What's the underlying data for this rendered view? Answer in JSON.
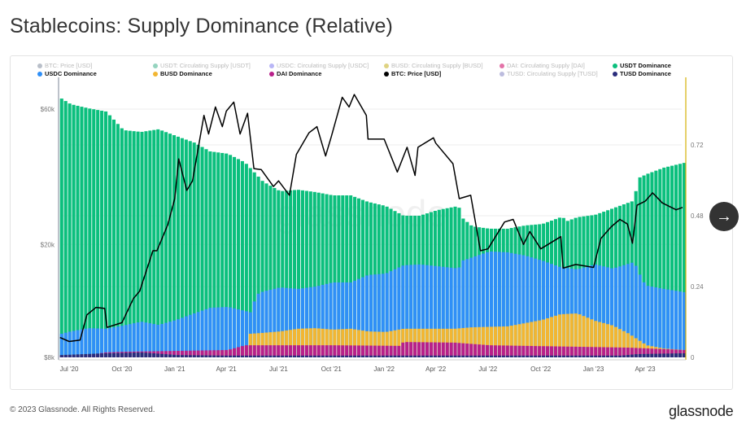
{
  "page": {
    "title": "Stablecoins: Supply Dominance (Relative)",
    "footer": "© 2023 Glassnode. All Rights Reserved.",
    "logo": "glassnode",
    "watermark": "glassnode",
    "next_icon": "arrow-right-icon"
  },
  "legend": [
    {
      "label": "BTC: Price [USD]",
      "color": "#8a95a5",
      "active": false
    },
    {
      "label": "USDT: Circulating Supply [USDT]",
      "color": "#4fb894",
      "active": false
    },
    {
      "label": "USDC: Circulating Supply [USDC]",
      "color": "#8b86f0",
      "active": false
    },
    {
      "label": "BUSD: Circulating Supply [BUSD]",
      "color": "#c9b52e",
      "active": false
    },
    {
      "label": "DAI: Circulating Supply [DAI]",
      "color": "#d0166e",
      "active": false
    },
    {
      "label": "USDT Dominance",
      "color": "#0bbf7d",
      "active": true
    },
    {
      "label": "USDC Dominance",
      "color": "#2f8ff7",
      "active": true
    },
    {
      "label": "BUSD Dominance",
      "color": "#f2b632",
      "active": true
    },
    {
      "label": "DAI Dominance",
      "color": "#b8208a",
      "active": true
    },
    {
      "label": "BTC: Price [USD]",
      "color": "#000000",
      "active": true
    },
    {
      "label": "TUSD: Circulating Supply [TUSD]",
      "color": "#8f8fc8",
      "active": false
    },
    {
      "label": "TUSD Dominance",
      "color": "#2a2d7c",
      "active": true
    }
  ],
  "chart_data": {
    "type": "bar",
    "title": "Stablecoins: Supply Dominance (Relative)",
    "x_ticks": [
      "Jul '20",
      "Oct '20",
      "Jan '21",
      "Apr '21",
      "Jul '21",
      "Oct '21",
      "Jan '22",
      "Apr '22",
      "Jul '22",
      "Oct '22",
      "Jan '23",
      "Apr '23"
    ],
    "x_tick_dates": [
      "2020-07-01",
      "2020-10-01",
      "2021-01-01",
      "2021-04-01",
      "2021-07-01",
      "2021-10-01",
      "2022-01-01",
      "2022-04-01",
      "2022-07-01",
      "2022-10-01",
      "2023-01-01",
      "2023-04-01"
    ],
    "xlim": [
      "2020-06-15",
      "2023-06-05"
    ],
    "y_left": {
      "scale": "log",
      "ticks": [
        "$8k",
        "$20k",
        "$60k"
      ],
      "tick_values": [
        8000,
        20000,
        60000
      ]
    },
    "y_right": {
      "scale": "linear",
      "ticks": [
        "0",
        "0.24",
        "0.48",
        "0.72"
      ],
      "tick_values": [
        0,
        0.24,
        0.48,
        0.72
      ],
      "range": [
        0,
        0.95
      ],
      "axis_color": "#d4b106"
    },
    "grid": true,
    "bar_interval": "weekly",
    "series": [
      {
        "name": "USDT Dominance",
        "color": "#0bbf7d",
        "axis": "right",
        "points": [
          [
            "2020-06-15",
            0.877
          ],
          [
            "2020-07-01",
            0.858
          ],
          [
            "2020-08-01",
            0.844
          ],
          [
            "2020-09-01",
            0.833
          ],
          [
            "2020-10-01",
            0.77
          ],
          [
            "2020-11-01",
            0.764
          ],
          [
            "2020-12-01",
            0.773
          ],
          [
            "2021-01-01",
            0.75
          ],
          [
            "2021-02-01",
            0.728
          ],
          [
            "2021-03-01",
            0.698
          ],
          [
            "2021-04-01",
            0.69
          ],
          [
            "2021-05-01",
            0.66
          ],
          [
            "2021-06-01",
            0.596
          ],
          [
            "2021-07-01",
            0.563
          ],
          [
            "2021-08-01",
            0.568
          ],
          [
            "2021-09-01",
            0.56
          ],
          [
            "2021-10-01",
            0.549
          ],
          [
            "2021-11-01",
            0.549
          ],
          [
            "2021-12-01",
            0.527
          ],
          [
            "2022-01-01",
            0.513
          ],
          [
            "2022-02-01",
            0.48
          ],
          [
            "2022-03-01",
            0.48
          ],
          [
            "2022-04-01",
            0.499
          ],
          [
            "2022-05-08",
            0.513
          ],
          [
            "2022-05-15",
            0.472
          ],
          [
            "2022-06-01",
            0.444
          ],
          [
            "2022-07-01",
            0.436
          ],
          [
            "2022-08-01",
            0.436
          ],
          [
            "2022-09-01",
            0.447
          ],
          [
            "2022-10-01",
            0.452
          ],
          [
            "2022-11-05",
            0.477
          ],
          [
            "2022-11-12",
            0.461
          ],
          [
            "2022-12-01",
            0.475
          ],
          [
            "2023-01-01",
            0.483
          ],
          [
            "2023-02-01",
            0.505
          ],
          [
            "2023-03-08",
            0.53
          ],
          [
            "2023-03-20",
            0.61
          ],
          [
            "2023-04-01",
            0.621
          ],
          [
            "2023-05-01",
            0.643
          ],
          [
            "2023-06-05",
            0.659
          ]
        ]
      },
      {
        "name": "USDC Dominance",
        "color": "#2f8ff7",
        "axis": "right",
        "points": [
          [
            "2020-06-15",
            0.08
          ],
          [
            "2020-07-01",
            0.088
          ],
          [
            "2020-08-01",
            0.099
          ],
          [
            "2020-09-01",
            0.097
          ],
          [
            "2020-10-01",
            0.108
          ],
          [
            "2020-11-01",
            0.121
          ],
          [
            "2020-12-01",
            0.11
          ],
          [
            "2021-01-01",
            0.127
          ],
          [
            "2021-02-01",
            0.149
          ],
          [
            "2021-03-01",
            0.168
          ],
          [
            "2021-04-01",
            0.171
          ],
          [
            "2021-05-12",
            0.152
          ],
          [
            "2021-05-20",
            0.212
          ],
          [
            "2021-06-01",
            0.223
          ],
          [
            "2021-07-01",
            0.237
          ],
          [
            "2021-08-01",
            0.232
          ],
          [
            "2021-09-01",
            0.24
          ],
          [
            "2021-10-01",
            0.254
          ],
          [
            "2021-11-01",
            0.254
          ],
          [
            "2021-12-01",
            0.279
          ],
          [
            "2022-01-01",
            0.284
          ],
          [
            "2022-02-01",
            0.312
          ],
          [
            "2022-03-01",
            0.315
          ],
          [
            "2022-04-01",
            0.309
          ],
          [
            "2022-05-08",
            0.301
          ],
          [
            "2022-05-15",
            0.328
          ],
          [
            "2022-06-01",
            0.339
          ],
          [
            "2022-07-01",
            0.359
          ],
          [
            "2022-08-01",
            0.356
          ],
          [
            "2022-09-01",
            0.345
          ],
          [
            "2022-10-01",
            0.328
          ],
          [
            "2022-11-01",
            0.306
          ],
          [
            "2022-12-01",
            0.298
          ],
          [
            "2023-01-01",
            0.315
          ],
          [
            "2023-02-01",
            0.301
          ],
          [
            "2023-03-10",
            0.323
          ],
          [
            "2023-03-25",
            0.259
          ],
          [
            "2023-04-01",
            0.243
          ],
          [
            "2023-05-01",
            0.232
          ],
          [
            "2023-06-05",
            0.221
          ]
        ]
      },
      {
        "name": "BUSD Dominance",
        "color": "#f2b632",
        "axis": "right",
        "points": [
          [
            "2020-06-15",
            0.0
          ],
          [
            "2020-09-01",
            0.003
          ],
          [
            "2021-01-01",
            0.006
          ],
          [
            "2021-03-01",
            0.017
          ],
          [
            "2021-04-01",
            0.025
          ],
          [
            "2021-05-03",
            0.039
          ],
          [
            "2021-05-10",
            0.08
          ],
          [
            "2021-06-01",
            0.083
          ],
          [
            "2021-07-01",
            0.088
          ],
          [
            "2021-08-01",
            0.097
          ],
          [
            "2021-09-01",
            0.099
          ],
          [
            "2021-10-01",
            0.094
          ],
          [
            "2021-11-01",
            0.097
          ],
          [
            "2021-12-01",
            0.088
          ],
          [
            "2022-01-01",
            0.086
          ],
          [
            "2022-02-01",
            0.097
          ],
          [
            "2022-05-01",
            0.097
          ],
          [
            "2022-06-01",
            0.102
          ],
          [
            "2022-08-01",
            0.105
          ],
          [
            "2022-09-01",
            0.116
          ],
          [
            "2022-10-01",
            0.127
          ],
          [
            "2022-11-01",
            0.146
          ],
          [
            "2022-12-01",
            0.149
          ],
          [
            "2023-01-01",
            0.124
          ],
          [
            "2023-02-01",
            0.108
          ],
          [
            "2023-03-01",
            0.08
          ],
          [
            "2023-04-01",
            0.041
          ],
          [
            "2023-05-01",
            0.03
          ],
          [
            "2023-06-05",
            0.025
          ]
        ]
      },
      {
        "name": "DAI Dominance",
        "color": "#b8208a",
        "axis": "right",
        "points": [
          [
            "2020-06-15",
            0.006
          ],
          [
            "2020-08-01",
            0.008
          ],
          [
            "2020-09-01",
            0.017
          ],
          [
            "2020-10-01",
            0.019
          ],
          [
            "2021-01-01",
            0.022
          ],
          [
            "2021-04-01",
            0.025
          ],
          [
            "2021-05-01",
            0.041
          ],
          [
            "2021-10-01",
            0.041
          ],
          [
            "2022-01-25",
            0.039
          ],
          [
            "2022-02-01",
            0.052
          ],
          [
            "2022-05-01",
            0.05
          ],
          [
            "2022-07-01",
            0.041
          ],
          [
            "2022-12-01",
            0.036
          ],
          [
            "2023-03-01",
            0.033
          ],
          [
            "2023-06-05",
            0.025
          ]
        ]
      },
      {
        "name": "TUSD Dominance",
        "color": "#2a2d7c",
        "axis": "right",
        "points": [
          [
            "2020-06-15",
            0.008
          ],
          [
            "2020-09-01",
            0.014
          ],
          [
            "2020-11-01",
            0.017
          ],
          [
            "2021-01-01",
            0.008
          ],
          [
            "2021-04-01",
            0.006
          ],
          [
            "2022-01-01",
            0.006
          ],
          [
            "2023-02-15",
            0.006
          ],
          [
            "2023-03-15",
            0.011
          ],
          [
            "2023-06-05",
            0.014
          ]
        ]
      },
      {
        "name": "BTC: Price [USD]",
        "color": "#000000",
        "axis": "left",
        "type": "line",
        "points": [
          [
            "2020-06-15",
            9400
          ],
          [
            "2020-07-01",
            9100
          ],
          [
            "2020-07-20",
            9200
          ],
          [
            "2020-08-01",
            11300
          ],
          [
            "2020-08-17",
            12000
          ],
          [
            "2020-09-01",
            11900
          ],
          [
            "2020-09-05",
            10200
          ],
          [
            "2020-10-01",
            10600
          ],
          [
            "2020-10-21",
            12900
          ],
          [
            "2020-11-01",
            13700
          ],
          [
            "2020-11-24",
            19000
          ],
          [
            "2020-12-01",
            19000
          ],
          [
            "2020-12-20",
            23500
          ],
          [
            "2021-01-01",
            29000
          ],
          [
            "2021-01-08",
            40000
          ],
          [
            "2021-01-22",
            31000
          ],
          [
            "2021-02-01",
            33500
          ],
          [
            "2021-02-21",
            57000
          ],
          [
            "2021-03-01",
            49000
          ],
          [
            "2021-03-13",
            61000
          ],
          [
            "2021-03-25",
            52000
          ],
          [
            "2021-04-01",
            59000
          ],
          [
            "2021-04-14",
            63500
          ],
          [
            "2021-04-25",
            49000
          ],
          [
            "2021-05-08",
            58000
          ],
          [
            "2021-05-19",
            37000
          ],
          [
            "2021-06-01",
            36700
          ],
          [
            "2021-06-22",
            32000
          ],
          [
            "2021-07-01",
            33500
          ],
          [
            "2021-07-20",
            29800
          ],
          [
            "2021-08-01",
            41500
          ],
          [
            "2021-08-23",
            49500
          ],
          [
            "2021-09-06",
            52000
          ],
          [
            "2021-09-21",
            41000
          ],
          [
            "2021-10-01",
            48000
          ],
          [
            "2021-10-20",
            66000
          ],
          [
            "2021-11-01",
            61000
          ],
          [
            "2021-11-10",
            67500
          ],
          [
            "2021-12-01",
            57000
          ],
          [
            "2021-12-04",
            47000
          ],
          [
            "2022-01-01",
            47000
          ],
          [
            "2022-01-24",
            36000
          ],
          [
            "2022-02-10",
            44000
          ],
          [
            "2022-02-24",
            35000
          ],
          [
            "2022-03-01",
            44000
          ],
          [
            "2022-03-28",
            47500
          ],
          [
            "2022-04-01",
            45500
          ],
          [
            "2022-05-01",
            38500
          ],
          [
            "2022-05-12",
            29000
          ],
          [
            "2022-06-01",
            29800
          ],
          [
            "2022-06-18",
            19000
          ],
          [
            "2022-07-01",
            19300
          ],
          [
            "2022-07-30",
            24000
          ],
          [
            "2022-08-14",
            24500
          ],
          [
            "2022-09-01",
            20000
          ],
          [
            "2022-09-12",
            22200
          ],
          [
            "2022-10-01",
            19300
          ],
          [
            "2022-11-05",
            21300
          ],
          [
            "2022-11-09",
            16500
          ],
          [
            "2022-12-01",
            17000
          ],
          [
            "2023-01-01",
            16600
          ],
          [
            "2023-01-14",
            21000
          ],
          [
            "2023-02-01",
            23100
          ],
          [
            "2023-02-16",
            24500
          ],
          [
            "2023-03-01",
            23600
          ],
          [
            "2023-03-10",
            20200
          ],
          [
            "2023-03-18",
            27500
          ],
          [
            "2023-04-01",
            28400
          ],
          [
            "2023-04-14",
            30400
          ],
          [
            "2023-05-01",
            28000
          ],
          [
            "2023-05-25",
            26500
          ],
          [
            "2023-06-05",
            27000
          ]
        ]
      }
    ]
  }
}
